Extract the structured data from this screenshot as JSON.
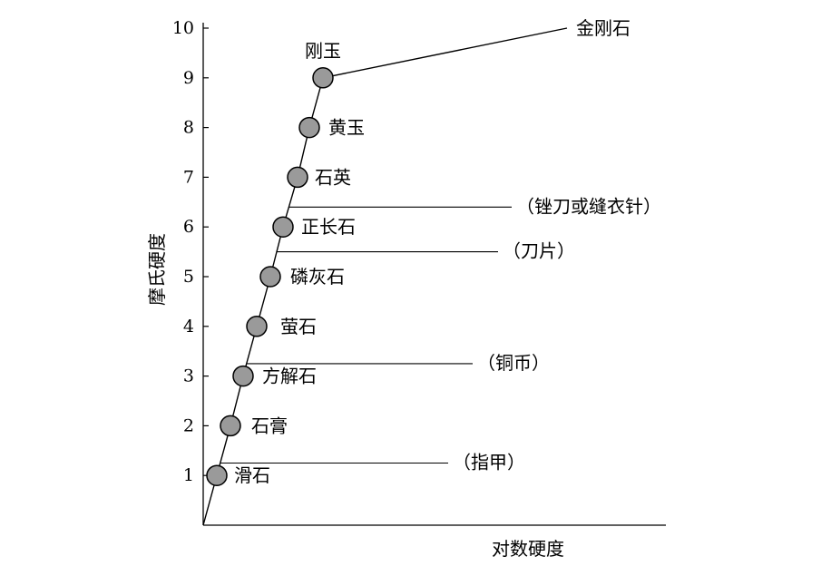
{
  "chart_data": {
    "type": "scatter",
    "title": "",
    "xlabel": "对数硬度",
    "ylabel": "摩氏硬度",
    "ylim": [
      0,
      10
    ],
    "yticks": [
      "1",
      "2",
      "3",
      "4",
      "5",
      "6",
      "7",
      "8",
      "9",
      "10"
    ],
    "grid": false,
    "series": [
      {
        "points": [
          {
            "label": "滑石",
            "y": 1
          },
          {
            "label": "石膏",
            "y": 2
          },
          {
            "label": "方解石",
            "y": 3
          },
          {
            "label": "萤石",
            "y": 4
          },
          {
            "label": "磷灰石",
            "y": 5
          },
          {
            "label": "正长石",
            "y": 6
          },
          {
            "label": "石英",
            "y": 7
          },
          {
            "label": "黄玉",
            "y": 8
          },
          {
            "label": "刚玉",
            "y": 9
          },
          {
            "label": "金刚石",
            "y": 10
          }
        ]
      }
    ],
    "reference_items": [
      {
        "label": "（指甲）",
        "y": 1.25
      },
      {
        "label": "（铜币）",
        "y": 3.25
      },
      {
        "label": "（刀片）",
        "y": 5.5
      },
      {
        "label": "（锉刀或缝衣针）",
        "y": 6.4
      }
    ]
  }
}
